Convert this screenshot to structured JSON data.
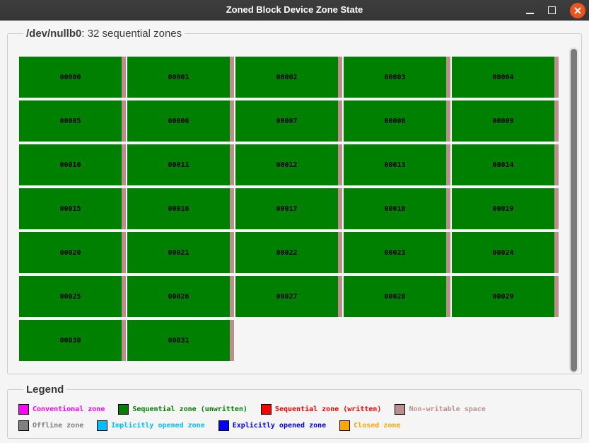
{
  "window": {
    "title": "Zoned Block Device Zone State"
  },
  "device": {
    "name": "/dev/nullb0",
    "summary": ": 32 sequential zones",
    "zones": [
      "00000",
      "00001",
      "00002",
      "00003",
      "00004",
      "00005",
      "00006",
      "00007",
      "00008",
      "00009",
      "00010",
      "00011",
      "00012",
      "00013",
      "00014",
      "00015",
      "00016",
      "00017",
      "00018",
      "00019",
      "00020",
      "00021",
      "00022",
      "00023",
      "00024",
      "00025",
      "00026",
      "00027",
      "00028",
      "00029",
      "00030",
      "00031"
    ]
  },
  "legend": {
    "title": "Legend",
    "rows": [
      [
        {
          "label": "Conventional zone",
          "color": "#ff00ff"
        },
        {
          "label": "Sequential zone (unwritten)",
          "color": "#008000"
        },
        {
          "label": "Sequential zone (written)",
          "color": "#ff0000"
        },
        {
          "label": "Non-writable space",
          "color": "#bc8f8f"
        }
      ],
      [
        {
          "label": "Offline zone",
          "color": "#808080"
        },
        {
          "label": "Implicitly opened zone",
          "color": "#00bfff"
        },
        {
          "label": "Explicitly opened zone",
          "color": "#0000ff"
        },
        {
          "label": "Closed zone",
          "color": "#ffa500"
        }
      ]
    ]
  },
  "colors": {
    "zone_fill": "#008000",
    "non_writable": "#bc8f8f",
    "titlebar_bg": "#373737",
    "close_button": "#e95420",
    "window_bg": "#f5f5f5"
  }
}
